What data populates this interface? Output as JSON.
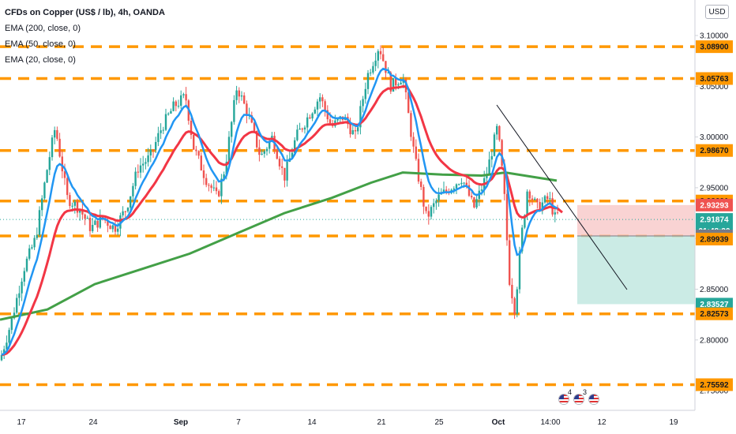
{
  "title": "CFDs on Copper (US$ / lb), 4h, OANDA",
  "indicators": [
    "EMA (200, close, 0)",
    "EMA (50, close, 0)",
    "EMA (20, close, 0)"
  ],
  "currency_button": "USD",
  "colors": {
    "up": "#26a69a",
    "down": "#ef5350",
    "ema20": "#2196f3",
    "ema50": "#f23645",
    "ema200": "#43a047",
    "hline": "#ff9800",
    "stop_zone": "#f8c8c8",
    "target_zone": "#c2e8e1"
  },
  "chart_data": {
    "type": "candlestick",
    "y_axis_ticks": [
      "3.10000",
      "3.05000",
      "3.00000",
      "2.95000",
      "2.90000",
      "2.85000",
      "2.80000",
      "2.75000"
    ],
    "x_axis_labels": [
      "17",
      "24",
      "Sep",
      "7",
      "14",
      "21",
      "25",
      "Oct",
      "14:00",
      "12",
      "19"
    ],
    "ylim": [
      2.745,
      3.112
    ],
    "horizontal_levels": [
      3.089,
      3.05763,
      2.9867,
      2.93691,
      2.90251,
      2.82573,
      2.75592
    ],
    "price_badges": [
      {
        "label": "3.08900",
        "value": 3.089,
        "kind": "level"
      },
      {
        "label": "3.05763",
        "value": 3.05763,
        "kind": "level"
      },
      {
        "label": "2.98670",
        "value": 2.9867,
        "kind": "level"
      },
      {
        "label": "2.93691",
        "value": 2.93691,
        "kind": "level"
      },
      {
        "label": "2.93293",
        "value": 2.93293,
        "kind": "stop"
      },
      {
        "label": "2.91874",
        "value": 2.91874,
        "kind": "last"
      },
      {
        "label": "01:48:30",
        "value": 2.9075,
        "kind": "countdown"
      },
      {
        "label": "2.90251",
        "value": 2.90251,
        "kind": "entry"
      },
      {
        "label": "2.89939",
        "value": 2.89939,
        "kind": "level"
      },
      {
        "label": "2.83527",
        "value": 2.83527,
        "kind": "target"
      },
      {
        "label": "2.82573",
        "value": 2.82573,
        "kind": "level"
      },
      {
        "label": "2.75592",
        "value": 2.75592,
        "kind": "level"
      }
    ],
    "position": {
      "entry": 2.90251,
      "stop": 2.93293,
      "target": 2.83527
    },
    "events": [
      "4",
      "3"
    ]
  }
}
